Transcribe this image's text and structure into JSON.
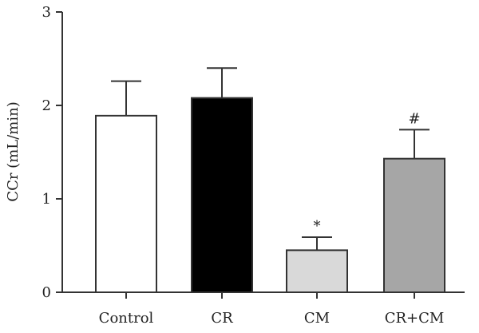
{
  "chart_data": {
    "type": "bar",
    "categories": [
      "Control",
      "CR",
      "CM",
      "CR+CM"
    ],
    "values": [
      1.89,
      2.08,
      0.45,
      1.43
    ],
    "errors": [
      0.37,
      0.32,
      0.14,
      0.31
    ],
    "annotations": [
      "",
      "",
      "*",
      "#"
    ],
    "bar_colors": [
      "#ffffff",
      "#000000",
      "#d9d9d9",
      "#a6a6a6"
    ],
    "ylabel": "CCr (mL/min)",
    "xlabel": "",
    "ylim": [
      0,
      3
    ],
    "yticks": [
      "0",
      "1",
      "2",
      "3"
    ],
    "grid": false,
    "legend": "none"
  }
}
